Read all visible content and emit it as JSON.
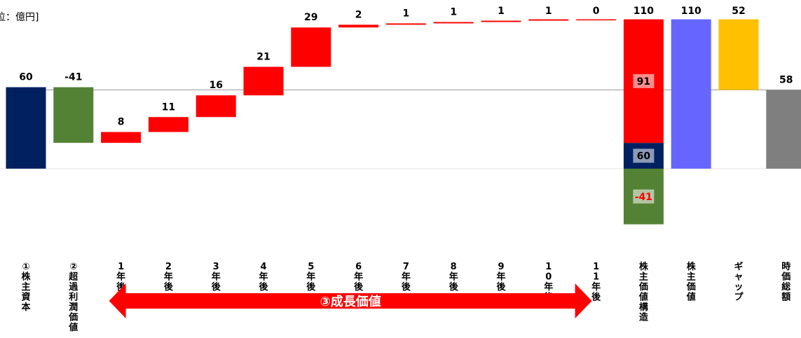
{
  "unit_label": "位：億円]",
  "chart_data": {
    "type": "waterfall",
    "title": "",
    "unit": "位：億円]",
    "colors": {
      "equity": "#002060",
      "excess": "#548235",
      "growth": "#ff0000",
      "stock_value": "#6666ff",
      "gap": "#ffc000",
      "market_cap": "#7f7f7f"
    },
    "bars": [
      {
        "category": "①株主資本",
        "value": 60,
        "label": "60",
        "kind": "equity",
        "from": 0,
        "to": 60
      },
      {
        "category": "②超過利潤価値",
        "value": -41,
        "label": "-41",
        "kind": "excess",
        "from": 19,
        "to": 60
      },
      {
        "category": "1年後",
        "value": 8,
        "label": "8",
        "kind": "growth",
        "from": 19,
        "to": 27
      },
      {
        "category": "2年後",
        "value": 11,
        "label": "11",
        "kind": "growth",
        "from": 27,
        "to": 38
      },
      {
        "category": "3年後",
        "value": 16,
        "label": "16",
        "kind": "growth",
        "from": 38,
        "to": 54
      },
      {
        "category": "4年後",
        "value": 21,
        "label": "21",
        "kind": "growth",
        "from": 54,
        "to": 75
      },
      {
        "category": "5年後",
        "value": 29,
        "label": "29",
        "kind": "growth",
        "from": 75,
        "to": 104
      },
      {
        "category": "6年後",
        "value": 2,
        "label": "2",
        "kind": "growth",
        "from": 104,
        "to": 106
      },
      {
        "category": "7年後",
        "value": 1,
        "label": "1",
        "kind": "growth",
        "from": 106,
        "to": 107
      },
      {
        "category": "8年後",
        "value": 1,
        "label": "1",
        "kind": "growth",
        "from": 107,
        "to": 108
      },
      {
        "category": "9年後",
        "value": 1,
        "label": "1",
        "kind": "growth",
        "from": 108,
        "to": 109
      },
      {
        "category": "10年後",
        "value": 1,
        "label": "1",
        "kind": "growth",
        "from": 109,
        "to": 110
      },
      {
        "category": "11年後",
        "value": 0,
        "label": "0",
        "kind": "growth",
        "from": 110,
        "to": 110
      },
      {
        "category": "株主価値構造",
        "value": 110,
        "label": "110",
        "kind": "stacked",
        "segments": [
          {
            "label": "-41",
            "value": -41,
            "from": -41,
            "to": 0,
            "kind": "excess"
          },
          {
            "label": "60",
            "value": 60,
            "from": 0,
            "to": 19,
            "kind": "equity"
          },
          {
            "label": "91",
            "value": 91,
            "from": 19,
            "to": 110,
            "kind": "growth"
          }
        ]
      },
      {
        "category": "株主価値",
        "value": 110,
        "label": "110",
        "kind": "stock_value",
        "from": 0,
        "to": 110
      },
      {
        "category": "ギャップ",
        "value": 52,
        "label": "52",
        "kind": "gap",
        "from": 58,
        "to": 110
      },
      {
        "category": "時価総額",
        "value": 58,
        "label": "58",
        "kind": "market_cap",
        "from": 0,
        "to": 58
      }
    ],
    "reference_line": {
      "value": 58
    },
    "ylim": [
      -44,
      113
    ],
    "bracket": {
      "label": "③成長価値",
      "from_category": "1年後",
      "to_category": "11年後",
      "color": "#ff0000"
    }
  }
}
